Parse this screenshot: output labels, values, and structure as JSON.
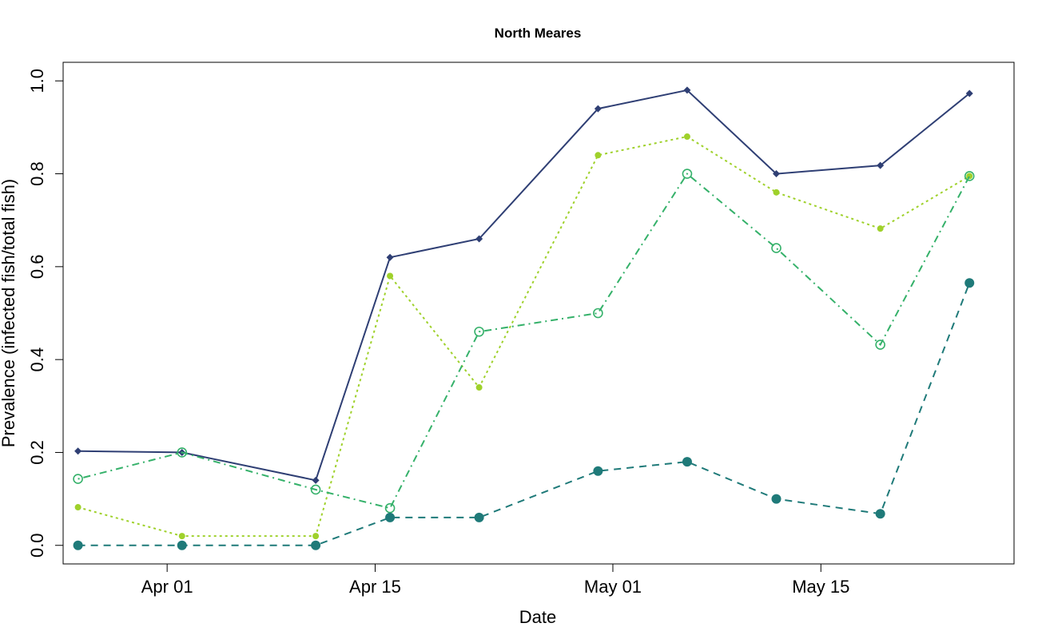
{
  "chart_data": {
    "type": "line",
    "title": "North Meares",
    "xlabel": "Date",
    "ylabel": "Prevalence (infected fish/total fish)",
    "x_ticks": [
      {
        "date": "2019-04-01",
        "label": "Apr 01"
      },
      {
        "date": "2019-04-15",
        "label": "Apr 15"
      },
      {
        "date": "2019-05-01",
        "label": "May 01"
      },
      {
        "date": "2019-05-15",
        "label": "May 15"
      }
    ],
    "y_ticks": [
      {
        "value": 0.0,
        "label": "0.0"
      },
      {
        "value": 0.2,
        "label": "0.2"
      },
      {
        "value": 0.4,
        "label": "0.4"
      },
      {
        "value": 0.6,
        "label": "0.6"
      },
      {
        "value": 0.8,
        "label": "0.8"
      },
      {
        "value": 1.0,
        "label": "1.0"
      }
    ],
    "xlim": [
      "2019-03-25",
      "2019-05-28"
    ],
    "ylim": [
      -0.04,
      1.04
    ],
    "grid": false,
    "x": [
      "2019-03-26",
      "2019-04-02",
      "2019-04-11",
      "2019-04-16",
      "2019-04-22",
      "2019-04-30",
      "2019-05-06",
      "2019-05-12",
      "2019-05-19",
      "2019-05-25"
    ],
    "series": [
      {
        "color": "#2f3f74",
        "line_style": "solid",
        "marker": "diamond",
        "values": [
          0.203,
          0.2,
          0.14,
          0.62,
          0.66,
          0.94,
          0.98,
          0.8,
          0.818,
          0.973
        ]
      },
      {
        "color": "#9fd12b",
        "line_style": "dotted",
        "marker": "small-filled-circle",
        "values": [
          0.082,
          0.02,
          0.02,
          0.58,
          0.34,
          0.84,
          0.88,
          0.76,
          0.682,
          0.795
        ]
      },
      {
        "color": "#35b16a",
        "line_style": "dashdot",
        "marker": "open-circle",
        "values": [
          0.143,
          0.2,
          0.12,
          0.08,
          0.46,
          0.5,
          0.8,
          0.64,
          0.432,
          0.795
        ]
      },
      {
        "color": "#1f7a79",
        "line_style": "dashed",
        "marker": "large-filled-circle",
        "values": [
          0.0,
          0.0,
          0.0,
          0.06,
          0.06,
          0.16,
          0.18,
          0.1,
          0.068,
          0.565
        ]
      }
    ]
  }
}
